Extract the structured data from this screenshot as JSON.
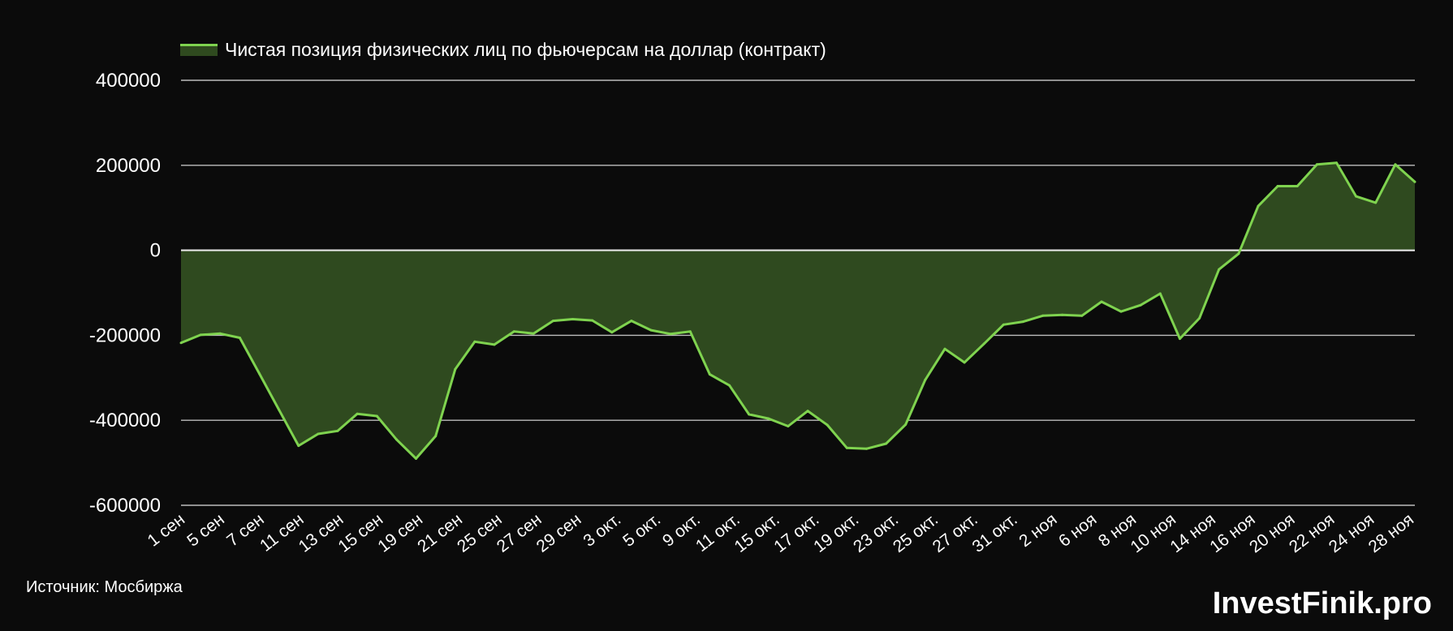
{
  "chart_data": {
    "type": "area",
    "title": "",
    "xlabel": "",
    "ylabel": "",
    "ylim": [
      -600000,
      400000
    ],
    "yticks": [
      400000,
      200000,
      0,
      -200000,
      -400000,
      -600000
    ],
    "grid": true,
    "legend_position": "top-left",
    "series": [
      {
        "name": "Чистая позиция физических лиц по фьючерсам на доллар (контракт)",
        "color": "#7fd34f",
        "fill": "#2f4a1f",
        "values": [
          -218000,
          -199000,
          -196000,
          -206000,
          -290000,
          -375000,
          -460000,
          -432000,
          -425000,
          -385000,
          -390000,
          -445000,
          -490000,
          -437000,
          -280000,
          -215000,
          -222000,
          -191000,
          -196000,
          -166000,
          -162000,
          -165000,
          -193000,
          -166000,
          -188000,
          -197000,
          -191000,
          -292000,
          -318000,
          -386000,
          -396000,
          -414000,
          -378000,
          -411000,
          -465000,
          -467000,
          -455000,
          -410000,
          -305000,
          -232000,
          -264000,
          -220000,
          -175000,
          -168000,
          -154000,
          -152000,
          -154000,
          -121000,
          -144000,
          -129000,
          -102000,
          -208000,
          -160000,
          -45000,
          -8000,
          104000,
          151000,
          151000,
          202000,
          206000,
          127000,
          112000,
          202000,
          161000
        ]
      }
    ],
    "x_tick_labels": [
      "1 сен",
      "5 сен",
      "7 сен",
      "11 сен",
      "13 сен",
      "15 сен",
      "19 сен",
      "21 сен",
      "25 сен",
      "27 сен",
      "29 сен",
      "3 окт.",
      "5 окт.",
      "9 окт.",
      "11 окт.",
      "15 окт.",
      "17 окт.",
      "19 окт.",
      "23 окт.",
      "25 окт.",
      "27 окт.",
      "31 окт.",
      "2 ноя",
      "6 ноя",
      "8 ноя",
      "10 ноя",
      "14 ноя",
      "16 ноя",
      "20 ноя",
      "22 ноя",
      "24 ноя",
      "28 ноя"
    ]
  },
  "source_text": "Источник: Мосбиржа",
  "brand_text": "InvestFinik.pro"
}
